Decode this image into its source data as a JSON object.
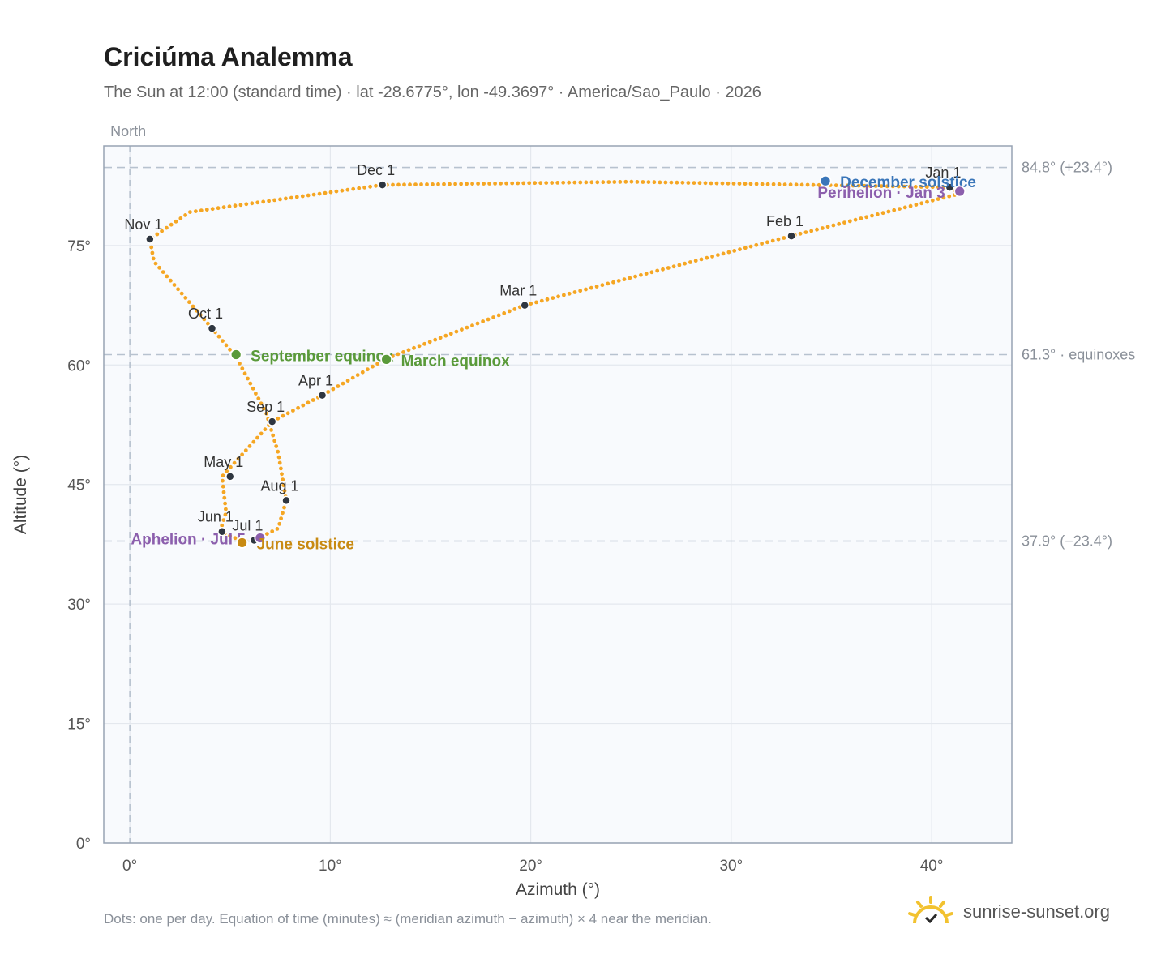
{
  "header": {
    "title": "Criciúma Analemma",
    "subtitle": "The Sun at 12:00 (standard time) · lat -28.6775°, lon -49.3697° · America/Sao_Paulo · 2026"
  },
  "footer": {
    "note": "Dots: one per day. Equation of time (minutes) ≈ (meridian azimuth − azimuth) × 4 near the meridian.",
    "brand": "sunrise-sunset.org"
  },
  "chart_data": {
    "type": "scatter",
    "xlabel": "Azimuth (°)",
    "ylabel": "Altitude (°)",
    "xlim": [
      -1.3,
      44
    ],
    "ylim": [
      0,
      87.5
    ],
    "xticks": [
      0,
      10,
      20,
      30,
      40
    ],
    "xtick_labels": [
      "0°",
      "10°",
      "20°",
      "30°",
      "40°"
    ],
    "yticks": [
      0,
      15,
      30,
      45,
      60,
      75
    ],
    "ytick_labels": [
      "0°",
      "15°",
      "30°",
      "45°",
      "60°",
      "75°"
    ],
    "grid": true,
    "north_line": {
      "x": 0,
      "label": "North"
    },
    "reference_lines": [
      {
        "y": 84.8,
        "label": "84.8° (+23.4°)"
      },
      {
        "y": 61.3,
        "label": "61.3° · equinoxes"
      },
      {
        "y": 37.9,
        "label": "37.9° (−23.4°)"
      }
    ],
    "path_anchors": [
      {
        "x": 40.9,
        "y": 82.3
      },
      {
        "x": 41.4,
        "y": 81.5
      },
      {
        "x": 33.0,
        "y": 76.2
      },
      {
        "x": 19.7,
        "y": 67.5
      },
      {
        "x": 12.8,
        "y": 60.8
      },
      {
        "x": 9.6,
        "y": 56.2
      },
      {
        "x": 7.1,
        "y": 52.9
      },
      {
        "x": 4.6,
        "y": 46.0
      },
      {
        "x": 4.8,
        "y": 41.5
      },
      {
        "x": 4.5,
        "y": 39.1
      },
      {
        "x": 5.6,
        "y": 37.9
      },
      {
        "x": 6.2,
        "y": 38.0
      },
      {
        "x": 7.4,
        "y": 39.5
      },
      {
        "x": 7.8,
        "y": 43.0
      },
      {
        "x": 7.4,
        "y": 49.0
      },
      {
        "x": 6.8,
        "y": 54.0
      },
      {
        "x": 5.3,
        "y": 61.0
      },
      {
        "x": 4.1,
        "y": 64.6
      },
      {
        "x": 1.2,
        "y": 73.0
      },
      {
        "x": 1.0,
        "y": 75.8
      },
      {
        "x": 3.0,
        "y": 79.2
      },
      {
        "x": 12.6,
        "y": 82.6
      },
      {
        "x": 25.0,
        "y": 83.0
      },
      {
        "x": 40.9,
        "y": 82.3
      }
    ],
    "month_markers": [
      {
        "label": "Jan 1",
        "x": 40.9,
        "y": 82.3
      },
      {
        "label": "Feb 1",
        "x": 33.0,
        "y": 76.2
      },
      {
        "label": "Mar 1",
        "x": 19.7,
        "y": 67.5
      },
      {
        "label": "Apr 1",
        "x": 9.6,
        "y": 56.2
      },
      {
        "label": "May 1",
        "x": 5.0,
        "y": 46.0
      },
      {
        "label": "Jun 1",
        "x": 4.6,
        "y": 39.1
      },
      {
        "label": "Jul 1",
        "x": 6.2,
        "y": 38.0
      },
      {
        "label": "Aug 1",
        "x": 7.8,
        "y": 43.0
      },
      {
        "label": "Sep 1",
        "x": 7.1,
        "y": 52.9
      },
      {
        "label": "Oct 1",
        "x": 4.1,
        "y": 64.6
      },
      {
        "label": "Nov 1",
        "x": 1.0,
        "y": 75.8
      },
      {
        "label": "Dec 1",
        "x": 12.6,
        "y": 82.6
      }
    ],
    "events": [
      {
        "label": "December solstice",
        "x": 34.7,
        "y": 83.1,
        "color": "#3a76b9"
      },
      {
        "label": "Perihelion · Jan 3",
        "x": 41.4,
        "y": 81.8,
        "color": "#8c5fad"
      },
      {
        "label": "September equinox",
        "x": 5.3,
        "y": 61.3,
        "color": "#5a9a3a"
      },
      {
        "label": "March equinox",
        "x": 12.8,
        "y": 60.7,
        "color": "#5a9a3a"
      },
      {
        "label": "Aphelion · Jul 5",
        "x": 6.5,
        "y": 38.3,
        "color": "#8c5fad"
      },
      {
        "label": "June solstice",
        "x": 5.6,
        "y": 37.7,
        "color": "#c88a12"
      }
    ],
    "colors": {
      "path": "#f5a623",
      "marker": "#2f3640",
      "grid": "#e4e8ee",
      "plot_bg": "#f8fafd",
      "frame": "#97a3b3",
      "ref_line": "#b7c2cf"
    }
  }
}
